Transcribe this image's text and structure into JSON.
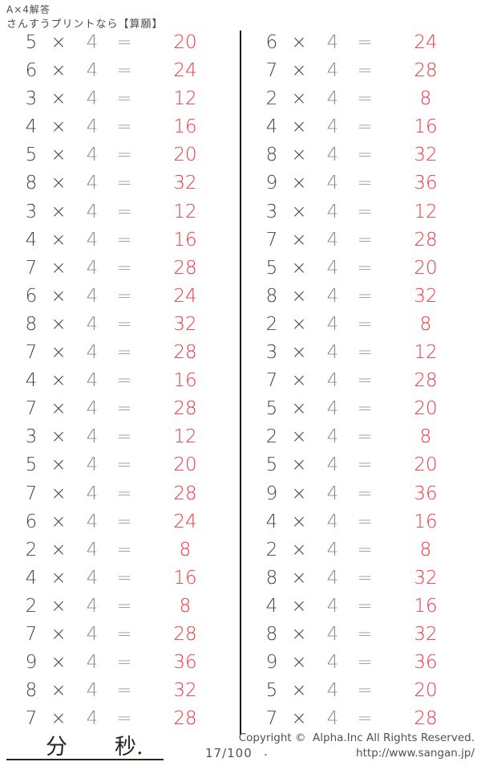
{
  "header": {
    "title": "A×4解答",
    "subtitle": "さんすうプリントなら【算願】"
  },
  "worksheet": {
    "operator": "×",
    "multiplier": "4",
    "equals_sign": "=",
    "answer_color": "#ed3943",
    "columns": [
      {
        "side": "left",
        "problems": [
          {
            "a": "5",
            "answer": "20"
          },
          {
            "a": "6",
            "answer": "24"
          },
          {
            "a": "3",
            "answer": "12"
          },
          {
            "a": "4",
            "answer": "16"
          },
          {
            "a": "5",
            "answer": "20"
          },
          {
            "a": "8",
            "answer": "32"
          },
          {
            "a": "3",
            "answer": "12"
          },
          {
            "a": "4",
            "answer": "16"
          },
          {
            "a": "7",
            "answer": "28"
          },
          {
            "a": "6",
            "answer": "24"
          },
          {
            "a": "8",
            "answer": "32"
          },
          {
            "a": "7",
            "answer": "28"
          },
          {
            "a": "4",
            "answer": "16"
          },
          {
            "a": "7",
            "answer": "28"
          },
          {
            "a": "3",
            "answer": "12"
          },
          {
            "a": "5",
            "answer": "20"
          },
          {
            "a": "7",
            "answer": "28"
          },
          {
            "a": "6",
            "answer": "24"
          },
          {
            "a": "2",
            "answer": "8"
          },
          {
            "a": "4",
            "answer": "16"
          },
          {
            "a": "2",
            "answer": "8"
          },
          {
            "a": "7",
            "answer": "28"
          },
          {
            "a": "9",
            "answer": "36"
          },
          {
            "a": "8",
            "answer": "32"
          },
          {
            "a": "7",
            "answer": "28"
          }
        ]
      },
      {
        "side": "right",
        "problems": [
          {
            "a": "6",
            "answer": "24"
          },
          {
            "a": "7",
            "answer": "28"
          },
          {
            "a": "2",
            "answer": "8"
          },
          {
            "a": "4",
            "answer": "16"
          },
          {
            "a": "8",
            "answer": "32"
          },
          {
            "a": "9",
            "answer": "36"
          },
          {
            "a": "3",
            "answer": "12"
          },
          {
            "a": "7",
            "answer": "28"
          },
          {
            "a": "5",
            "answer": "20"
          },
          {
            "a": "8",
            "answer": "32"
          },
          {
            "a": "2",
            "answer": "8"
          },
          {
            "a": "3",
            "answer": "12"
          },
          {
            "a": "7",
            "answer": "28"
          },
          {
            "a": "5",
            "answer": "20"
          },
          {
            "a": "2",
            "answer": "8"
          },
          {
            "a": "5",
            "answer": "20"
          },
          {
            "a": "9",
            "answer": "36"
          },
          {
            "a": "4",
            "answer": "16"
          },
          {
            "a": "2",
            "answer": "8"
          },
          {
            "a": "8",
            "answer": "32"
          },
          {
            "a": "4",
            "answer": "16"
          },
          {
            "a": "8",
            "answer": "32"
          },
          {
            "a": "9",
            "answer": "36"
          },
          {
            "a": "5",
            "answer": "20"
          },
          {
            "a": "7",
            "answer": "28"
          }
        ]
      }
    ]
  },
  "footer": {
    "minutes_label": "分",
    "seconds_label": "秒.",
    "page_number": "17/100",
    "dot": ".",
    "copyright": "Copyright ©  Alpha.Inc All Rights Reserved.",
    "url": "http://www.sangan.jp/"
  }
}
